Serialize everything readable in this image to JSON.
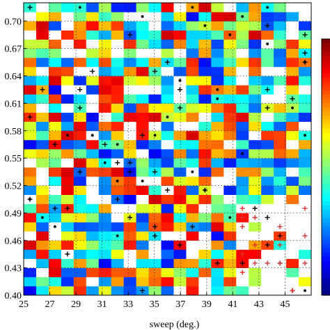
{
  "chart_data": {
    "type": "heatmap",
    "xlabel": "sweep (deg.)",
    "ylabel": "",
    "xlim": [
      25,
      47
    ],
    "ylim": [
      0.4,
      0.72
    ],
    "x_ticks": [
      "25",
      "27",
      "29",
      "31",
      "33",
      "35",
      "37",
      "39",
      "41",
      "43",
      "45"
    ],
    "y_ticks": [
      "0.40",
      "0.43",
      "0.46",
      "0.49",
      "0.52",
      "0.55",
      "0.58",
      "0.61",
      "0.64",
      "0.67",
      "0.70"
    ],
    "x_tick_values": [
      25,
      27,
      29,
      31,
      33,
      35,
      37,
      39,
      41,
      43,
      45
    ],
    "y_tick_values": [
      0.4,
      0.43,
      0.46,
      0.49,
      0.52,
      0.55,
      0.58,
      0.61,
      0.64,
      0.67,
      0.7
    ],
    "grid": true,
    "grid_style": "dotted",
    "colormap": "jet",
    "colorbar": true,
    "empty_cell_color": "#ffffff",
    "marker_color_black": "#000000",
    "marker_color_red": "#e0332a",
    "grid_cols": 23,
    "grid_rows": 32
  }
}
